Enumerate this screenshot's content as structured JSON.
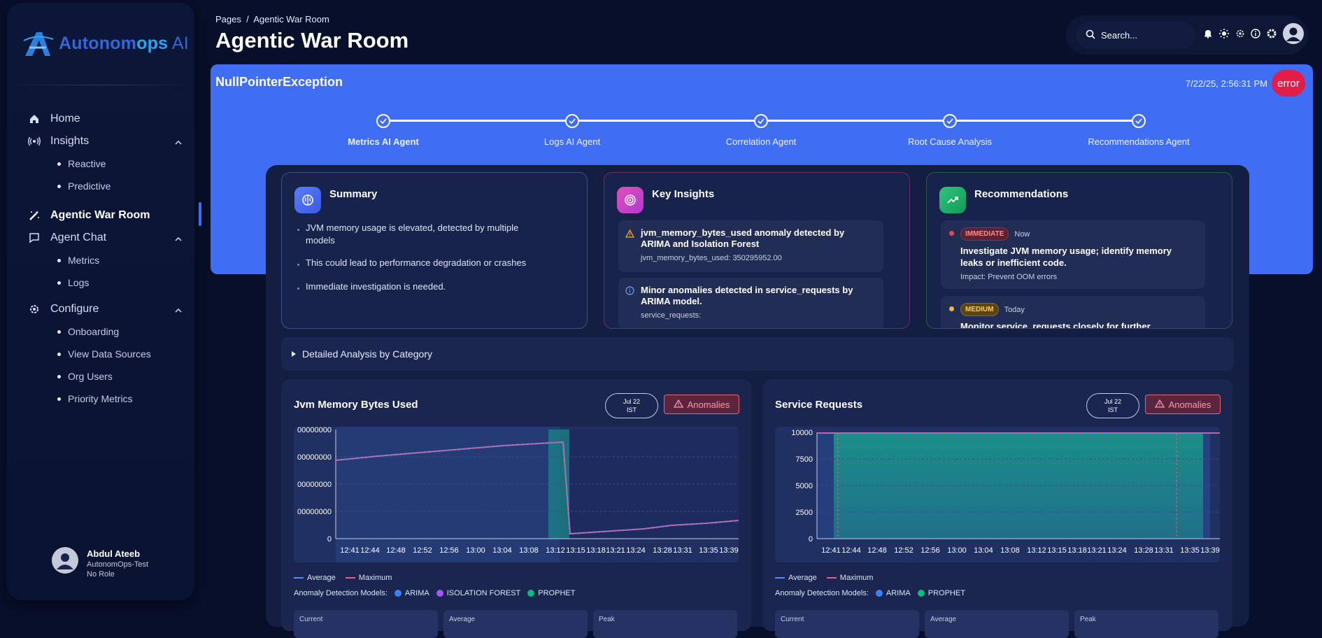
{
  "brand": {
    "name_a": "Autonom",
    "name_b": "ops",
    "name_c": " AI"
  },
  "nav": {
    "home": "Home",
    "insights": "Insights",
    "insights_sub": [
      "Reactive",
      "Predictive"
    ],
    "war_room": "Agentic War Room",
    "agent_chat": "Agent Chat",
    "agent_chat_sub": [
      "Metrics",
      "Logs"
    ],
    "configure": "Configure",
    "configure_sub": [
      "Onboarding",
      "View Data Sources",
      "Org Users",
      "Priority Metrics"
    ]
  },
  "user": {
    "name": "Abdul Ateeb",
    "org": "AutonomOps-Test",
    "role": "No Role"
  },
  "header": {
    "breadcrumb": "Pages  /  Agentic War Room",
    "title": "Agentic War Room",
    "search_placeholder": "Search..."
  },
  "incident": {
    "title": "NullPointerException",
    "timestamp": "7/22/25, 2:56:31 PM",
    "badge": "error"
  },
  "steps": [
    "Metrics AI Agent",
    "Logs AI Agent",
    "Correlation Agent",
    "Root Cause Analysis",
    "Recommendations Agent"
  ],
  "summary": {
    "title": "Summary",
    "bullets": [
      "JVM memory usage is elevated, detected by multiple models",
      "This could lead to performance degradation or crashes",
      "Immediate investigation is needed."
    ]
  },
  "insights": {
    "title": "Key Insights",
    "items": [
      {
        "title": "jvm_memory_bytes_used anomaly detected by ARIMA and Isolation Forest",
        "detail": "jvm_memory_bytes_used: 350295952.00"
      },
      {
        "title": "Minor anomalies detected in service_requests by ARIMA model.",
        "detail": "service_requests:"
      }
    ]
  },
  "recommendations": {
    "title": "Recommendations",
    "items": [
      {
        "priority": "IMMEDIATE",
        "when": "Now",
        "title": "Investigate JVM memory usage; identify memory leaks or inefficient code.",
        "impact": "Impact: Prevent OOM errors"
      },
      {
        "priority": "MEDIUM",
        "when": "Today",
        "title": "Monitor service_requests closely for further deviations."
      }
    ]
  },
  "details_label": "Detailed Analysis by Category",
  "charts": [
    {
      "title": "Jvm Memory Bytes Used",
      "date_line1": "Jul 22",
      "date_line2": "IST",
      "anomalies_label": "Anomalies",
      "y_ticks": [
        "00000000",
        "00000000",
        "00000000",
        "00000000",
        "0"
      ],
      "x_ticks": [
        "12:41",
        "12:44",
        "12:48",
        "12:52",
        "12:56",
        "13:00",
        "13:04",
        "13:08",
        "13:12",
        "13:15",
        "13:18",
        "13:21",
        "13:24",
        "13:28",
        "13:31",
        "13:35",
        "13:39"
      ],
      "legend": [
        "Average",
        "Maximum"
      ],
      "models_label": "Anomaly Detection Models:",
      "models": [
        "ARIMA",
        "ISOLATION FOREST",
        "PROPHET"
      ],
      "stats": [
        "Current",
        "Average",
        "Peak"
      ]
    },
    {
      "title": "Service Requests",
      "date_line1": "Jul 22",
      "date_line2": "IST",
      "anomalies_label": "Anomalies",
      "y_ticks": [
        "10000",
        "7500",
        "5000",
        "2500",
        "0"
      ],
      "x_ticks": [
        "12:41",
        "12:44",
        "12:48",
        "12:52",
        "12:56",
        "13:00",
        "13:04",
        "13:08",
        "13:12",
        "13:15",
        "13:18",
        "13:21",
        "13:24",
        "13:28",
        "13:31",
        "13:35",
        "13:39"
      ],
      "legend": [
        "Average",
        "Maximum"
      ],
      "models_label": "Anomaly Detection Models:",
      "models": [
        "ARIMA",
        "PROPHET"
      ],
      "stats": [
        "Current",
        "Average",
        "Peak"
      ]
    }
  ],
  "colors": {
    "accent": "#3f6df4",
    "error": "#e11d48",
    "average": "#4c8dff",
    "maximum": "#ef5a7a",
    "arima": "#3b82f6",
    "isolation_forest": "#a855f7",
    "prophet": "#10b981"
  }
}
